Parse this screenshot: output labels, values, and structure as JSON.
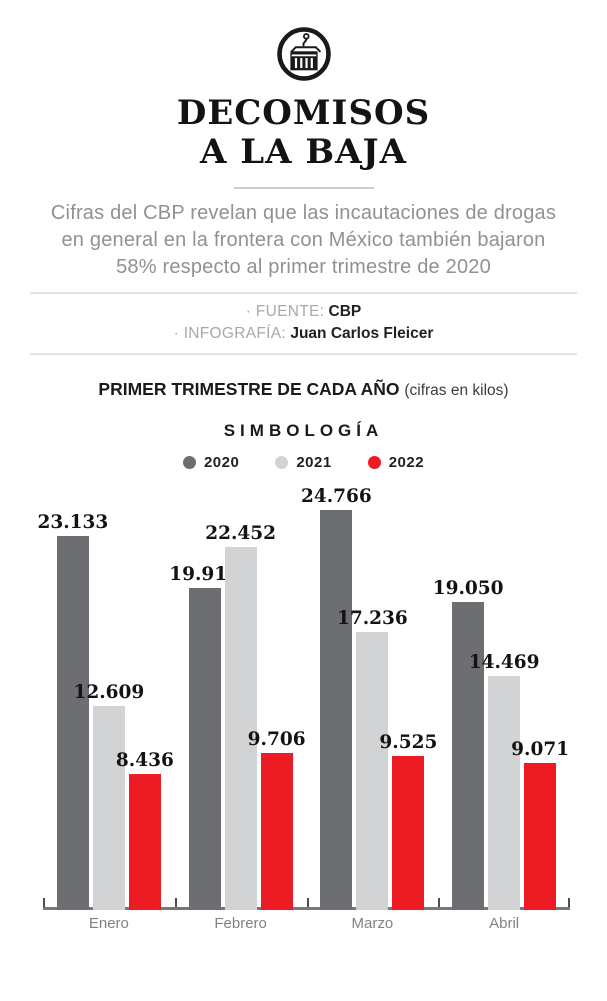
{
  "header": {
    "icon": "container-crane-icon",
    "title_line1": "DECOMISOS",
    "title_line2": "A LA BAJA",
    "subtitle_lines": [
      "Cifras del CBP revelan que las incautaciones de drogas",
      "en general en la frontera con México también bajaron",
      "58% respecto al primer trimestre de 2020"
    ],
    "source_label": "· FUENTE:",
    "source_value": "CBP",
    "credit_label": "· INFOGRAFÍA:",
    "credit_value": "Juan Carlos Fleicer"
  },
  "chart_header": {
    "title": "PRIMER TRIMESTRE DE CADA AÑO",
    "units_note": "(cifras en kilos)",
    "legend_title": "SIMBOLOGÍA"
  },
  "chart_data": {
    "type": "bar",
    "title": "PRIMER TRIMESTRE DE CADA AÑO (cifras en kilos)",
    "xlabel": "",
    "ylabel": "kilos",
    "ylim": [
      0,
      25000
    ],
    "grid": false,
    "legend_position": "top",
    "categories": [
      "Enero",
      "Febrero",
      "Marzo",
      "Abril"
    ],
    "series": [
      {
        "name": "2020",
        "color": "#6d6e71",
        "values": [
          23133,
          19912,
          24766,
          19050
        ],
        "labels": [
          "23.133",
          "19.912",
          "24.766",
          "19.050"
        ]
      },
      {
        "name": "2021",
        "color": "#d1d3d4",
        "values": [
          12609,
          22452,
          17236,
          14469
        ],
        "labels": [
          "12.609",
          "22.452",
          "17.236",
          "14.469"
        ]
      },
      {
        "name": "2022",
        "color": "#ed1c24",
        "values": [
          8436,
          9706,
          9525,
          9071
        ],
        "labels": [
          "8.436",
          "9.706",
          "9.525",
          "9.071"
        ]
      }
    ]
  },
  "colors": {
    "axis": "#77787b",
    "tick": "#4d4d4f",
    "label_text": "#131313",
    "month_text": "#808285"
  }
}
